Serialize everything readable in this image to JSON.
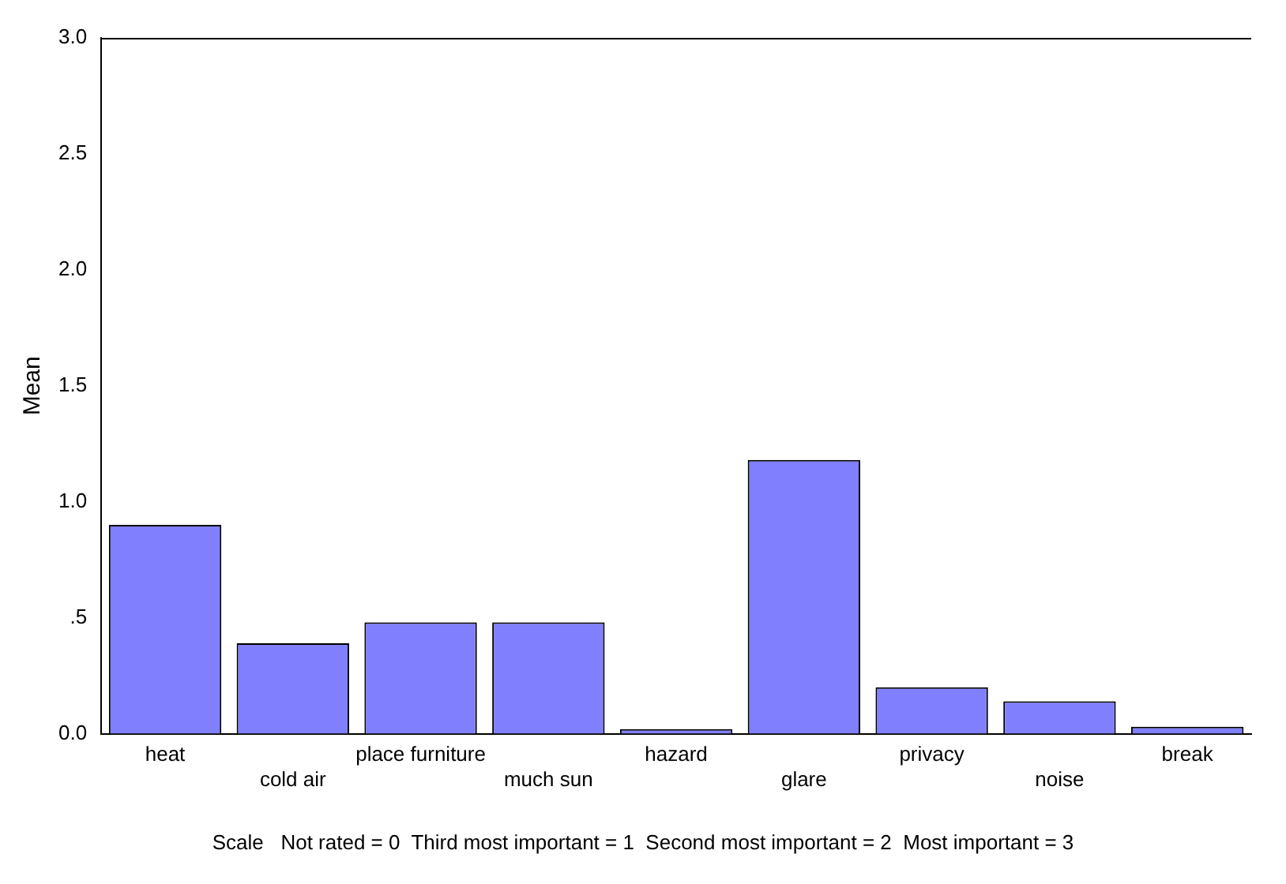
{
  "chart_data": {
    "type": "bar",
    "ylabel": "Mean",
    "categories": [
      "heat",
      "cold air",
      "place furniture",
      "much sun",
      "hazard",
      "glare",
      "privacy",
      "noise",
      "break"
    ],
    "values": [
      0.9,
      0.39,
      0.48,
      0.48,
      0.02,
      1.18,
      0.2,
      0.14,
      0.03
    ],
    "color": "#8080ff",
    "ylim": [
      0,
      3
    ],
    "yticks": [
      {
        "value": 0,
        "label": "0.0"
      },
      {
        "value": 0.5,
        "label": ".5"
      },
      {
        "value": 1,
        "label": "1.0"
      },
      {
        "value": 1.5,
        "label": "1.5"
      },
      {
        "value": 2,
        "label": "2.0"
      },
      {
        "value": 2.5,
        "label": "2.5"
      },
      {
        "value": 3,
        "label": "3.0"
      }
    ],
    "grid": false,
    "legend": false,
    "annotations": [
      "Scale   Not rated = 0  Third most important = 1  Second most important = 2  Most important = 3"
    ]
  }
}
